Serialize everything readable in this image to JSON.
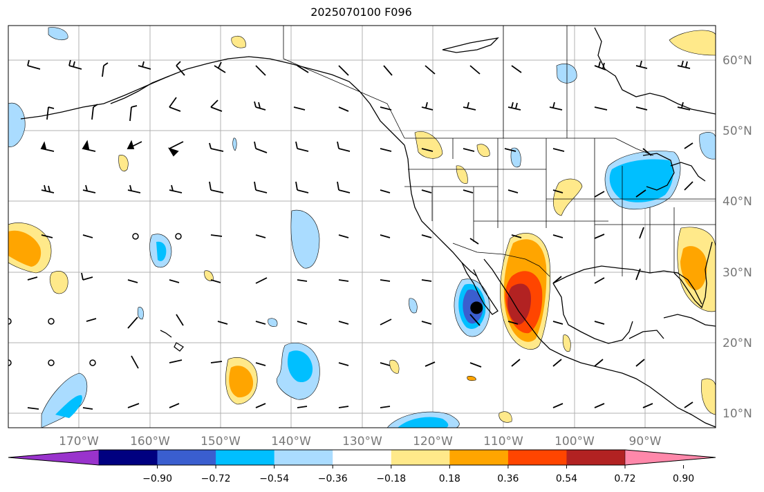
{
  "title": "2025070100 F096",
  "map": {
    "lon_range": [
      -180,
      -80
    ],
    "lat_range": [
      8,
      65
    ],
    "lat_labels": [
      "60°N",
      "50°N",
      "40°N",
      "30°N",
      "20°N",
      "10°N"
    ],
    "lon_labels": [
      "170°W",
      "160°W",
      "150°W",
      "140°W",
      "130°W",
      "120°W",
      "110°W",
      "100°W",
      "90°W"
    ],
    "marker": {
      "lon": -113.8,
      "lat": 25.0,
      "color": "#000000"
    }
  },
  "colorbar": {
    "colors": [
      "#9933cc",
      "#000080",
      "#3a5ecf",
      "#00bfff",
      "#aadcff",
      "#ffffff",
      "#ffe98a",
      "#ffa500",
      "#ff4500",
      "#b22222",
      "#ff88aa"
    ],
    "tick_labels": [
      "−0.90",
      "−0.72",
      "−0.54",
      "−0.36",
      "−0.18",
      "0.18",
      "0.36",
      "0.54",
      "0.72",
      "0.90"
    ],
    "tick_values": [
      -0.9,
      -0.72,
      -0.54,
      -0.36,
      -0.18,
      0.18,
      0.36,
      0.54,
      0.72,
      0.9
    ]
  }
}
